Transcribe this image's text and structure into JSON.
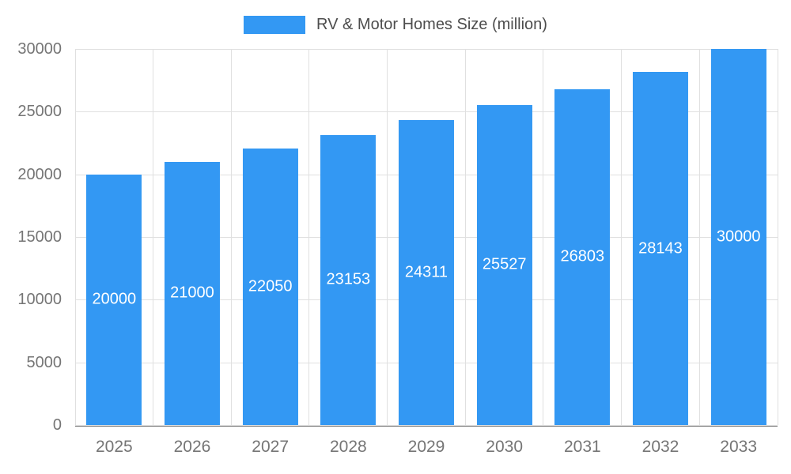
{
  "legend": {
    "label": "RV & Motor Homes Size (million)"
  },
  "chart_data": {
    "type": "bar",
    "title": "RV & Motor Homes Size (million)",
    "categories": [
      "2025",
      "2026",
      "2027",
      "2028",
      "2029",
      "2030",
      "2031",
      "2032",
      "2033"
    ],
    "values": [
      20000,
      21000,
      22050,
      23153,
      24311,
      25527,
      26803,
      28143,
      30000
    ],
    "value_labels": [
      "20000",
      "21000",
      "22050",
      "23153",
      "24311",
      "25527",
      "26803",
      "28143",
      "30000"
    ],
    "xlabel": "",
    "ylabel": "",
    "ylim": [
      0,
      30000
    ],
    "yticks": [
      0,
      5000,
      10000,
      15000,
      20000,
      25000,
      30000
    ],
    "grid": true,
    "legend_position": "top",
    "bar_color": "#3398f3",
    "value_label_color": "#ffffff",
    "axis_text_color": "#757575",
    "gridline_color": "#e0e0e0"
  }
}
